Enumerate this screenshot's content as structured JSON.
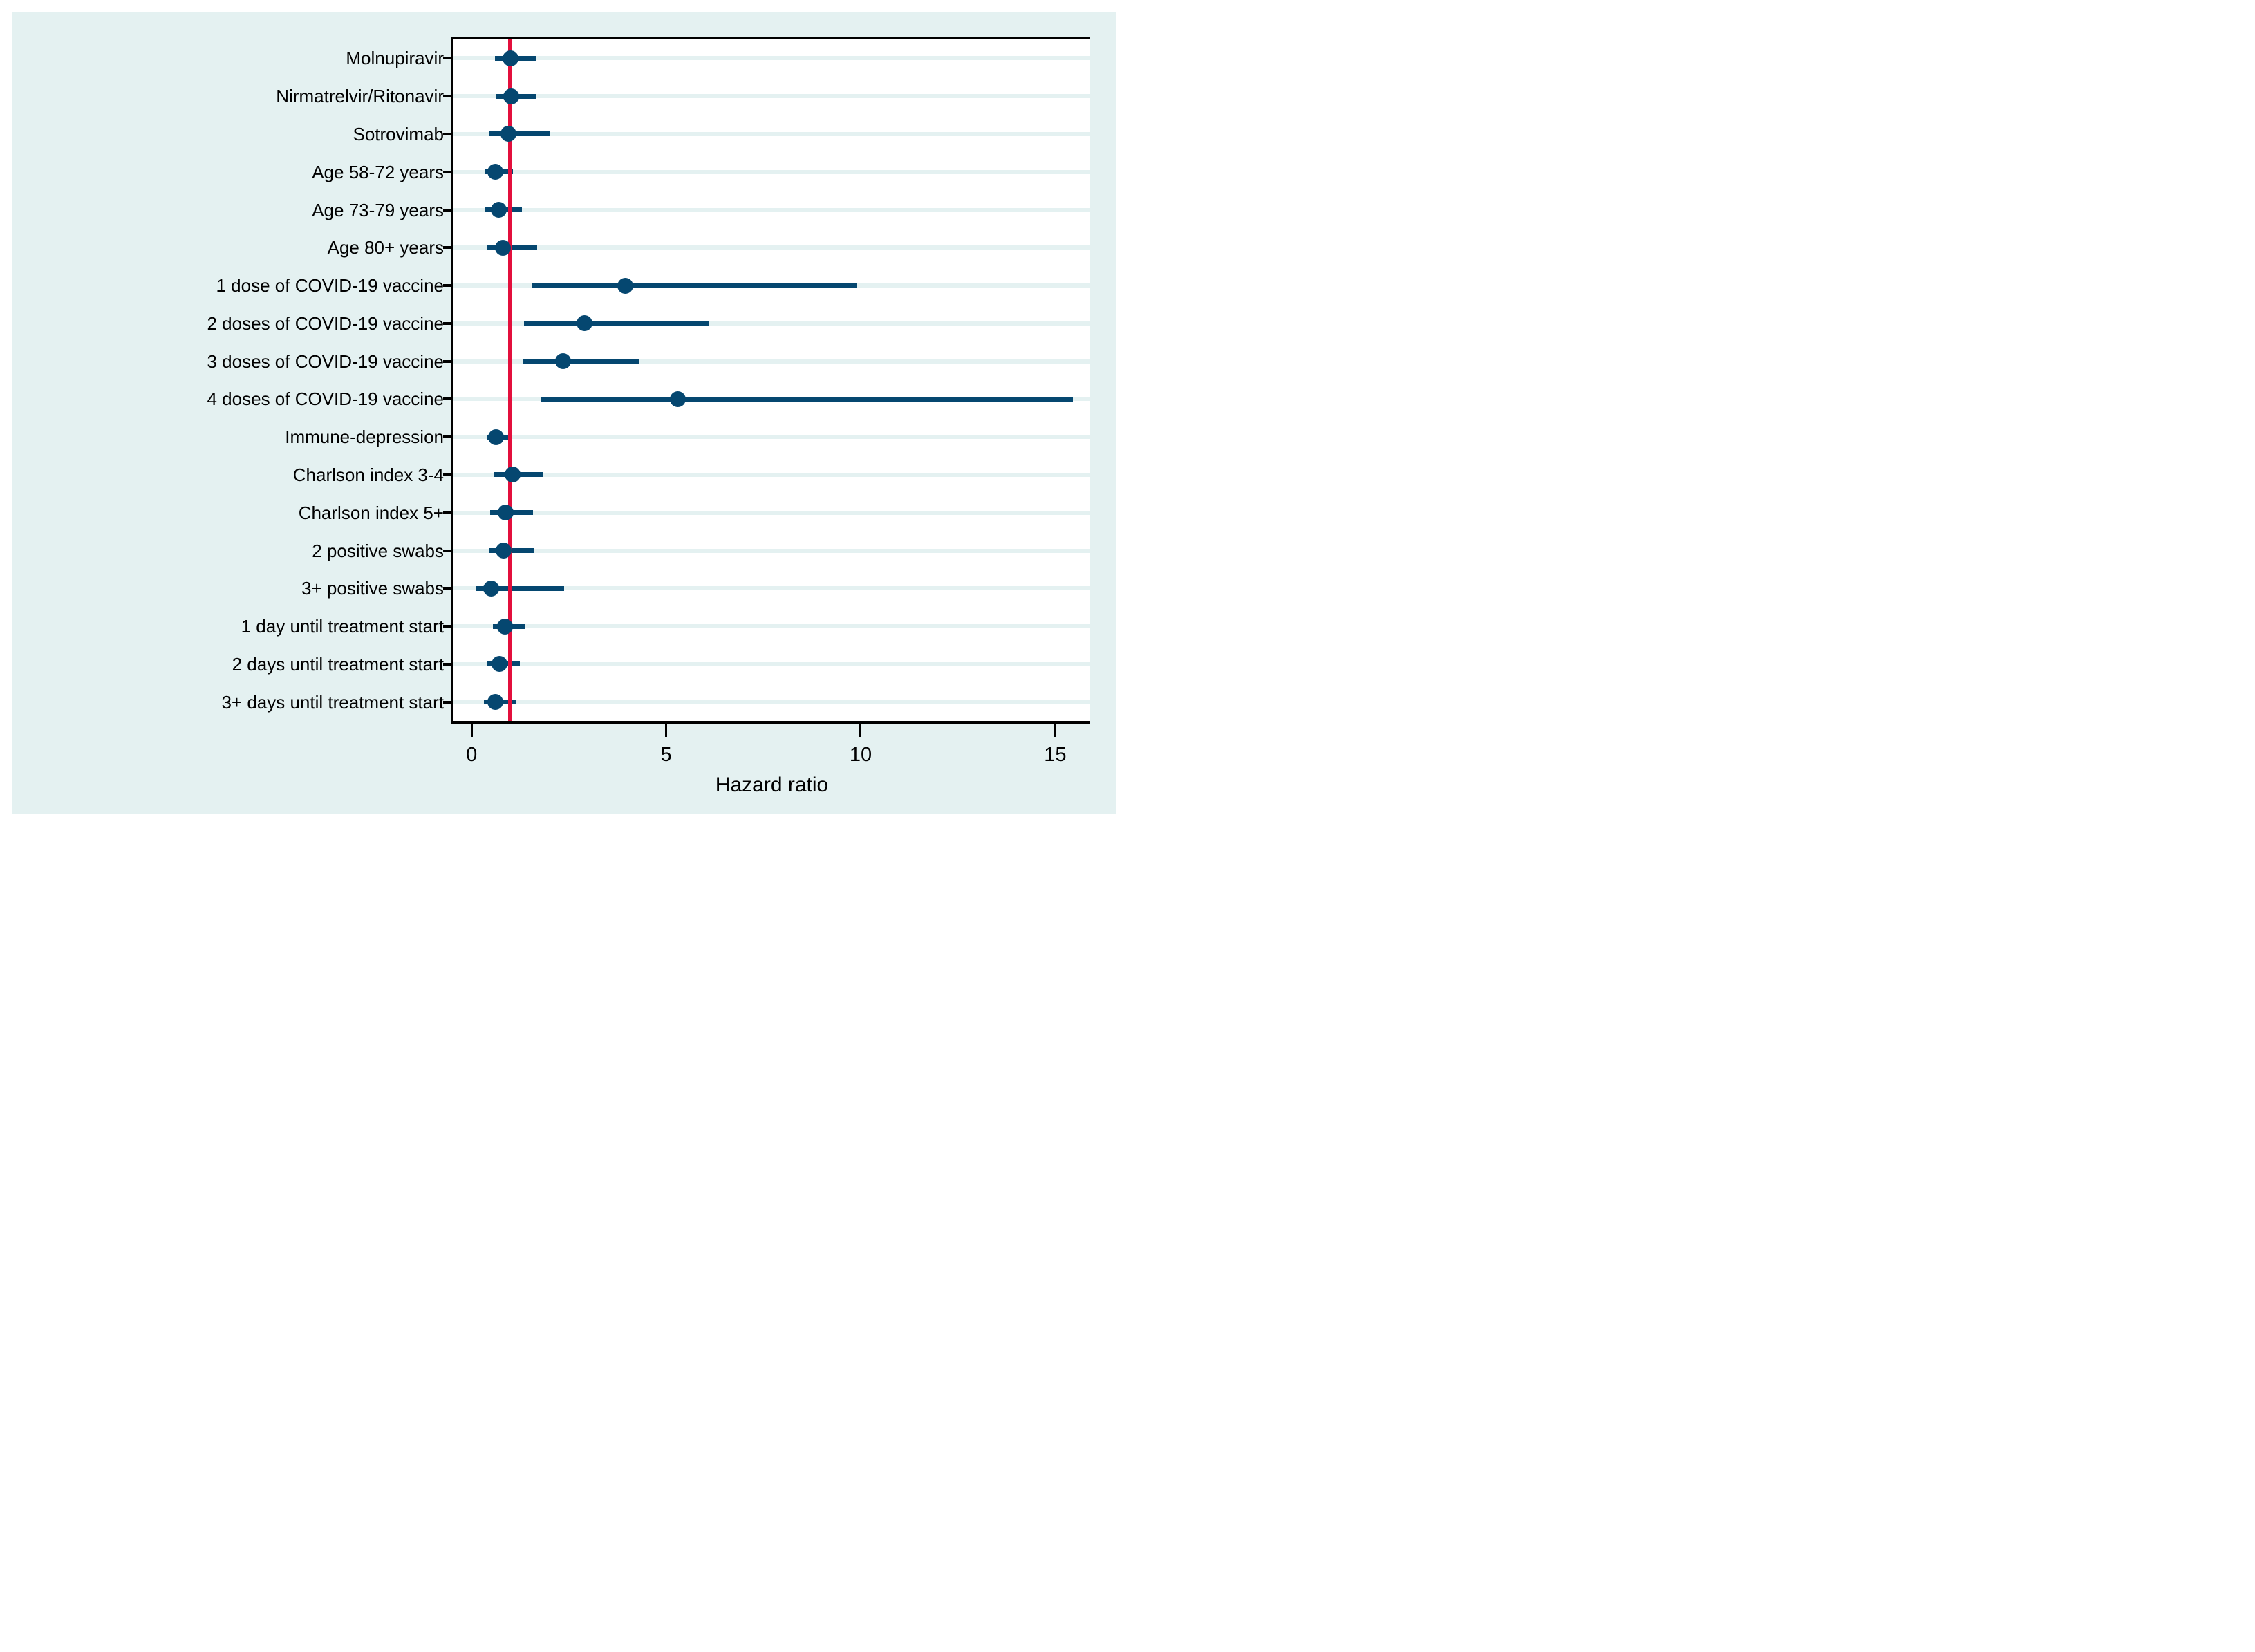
{
  "colors": {
    "page_background": "#ffffff",
    "panel_background": "#e4f1f1",
    "plot_background": "#ffffff",
    "gridline": "#e4f1f1",
    "marker_navy": "#054770",
    "reference_line_red": "#e30f3c",
    "axis_black": "#000000"
  },
  "chart_data": {
    "type": "scatter",
    "variant": "forest-plot",
    "title": "",
    "xlabel": "Hazard ratio",
    "ylabel": "",
    "legend": "none",
    "grid": "horizontal",
    "xlim": [
      -0.465,
      15.9
    ],
    "xticks": [
      "0",
      "5",
      "10",
      "15"
    ],
    "xtick_values": [
      0,
      5,
      10,
      15
    ],
    "reference_line_x": 1,
    "categories": [
      "Molnupiravir",
      "Nirmatrelvir/Ritonavir",
      "Sotrovimab",
      "Age 58-72 years",
      "Age 73-79 years",
      "Age 80+ years",
      "1 dose of COVID-19 vaccine",
      "2 doses of COVID-19 vaccine",
      "3 doses of COVID-19 vaccine",
      "4 doses of COVID-19 vaccine",
      "Immune-depression",
      "Charlson index 3-4",
      "Charlson index 5+",
      "2 positive swabs",
      "3+ positive swabs",
      "1 day until treatment start",
      "2 days until treatment start",
      "3+ days until treatment start"
    ],
    "rows": [
      {
        "label": "Molnupiravir",
        "hr": 1.0,
        "ci_low": 0.6,
        "ci_high": 1.65
      },
      {
        "label": "Nirmatrelvir/Ritonavir",
        "hr": 1.02,
        "ci_low": 0.62,
        "ci_high": 1.67
      },
      {
        "label": "Sotrovimab",
        "hr": 0.94,
        "ci_low": 0.44,
        "ci_high": 2.0
      },
      {
        "label": "Age 58-72 years",
        "hr": 0.61,
        "ci_low": 0.36,
        "ci_high": 1.07
      },
      {
        "label": "Age 73-79 years",
        "hr": 0.69,
        "ci_low": 0.36,
        "ci_high": 1.3
      },
      {
        "label": "Age 80+ years",
        "hr": 0.81,
        "ci_low": 0.39,
        "ci_high": 1.69
      },
      {
        "label": "1 dose of COVID-19 vaccine",
        "hr": 3.95,
        "ci_low": 1.55,
        "ci_high": 9.9
      },
      {
        "label": "2 doses of COVID-19 vaccine",
        "hr": 2.9,
        "ci_low": 1.35,
        "ci_high": 6.1
      },
      {
        "label": "3 doses of COVID-19 vaccine",
        "hr": 2.35,
        "ci_low": 1.32,
        "ci_high": 4.3
      },
      {
        "label": "4 doses of COVID-19 vaccine",
        "hr": 5.3,
        "ci_low": 1.8,
        "ci_high": 15.45
      },
      {
        "label": "Immune-depression",
        "hr": 0.63,
        "ci_low": 0.4,
        "ci_high": 1.01
      },
      {
        "label": "Charlson index 3-4",
        "hr": 1.05,
        "ci_low": 0.59,
        "ci_high": 1.82
      },
      {
        "label": "Charlson index 5+",
        "hr": 0.87,
        "ci_low": 0.48,
        "ci_high": 1.57
      },
      {
        "label": "2 positive swabs",
        "hr": 0.83,
        "ci_low": 0.44,
        "ci_high": 1.59
      },
      {
        "label": "3+ positive swabs",
        "hr": 0.51,
        "ci_low": 0.1,
        "ci_high": 2.38
      },
      {
        "label": "1 day until treatment start",
        "hr": 0.86,
        "ci_low": 0.54,
        "ci_high": 1.38
      },
      {
        "label": "2 days until treatment start",
        "hr": 0.72,
        "ci_low": 0.41,
        "ci_high": 1.24
      },
      {
        "label": "3+ days until treatment start",
        "hr": 0.61,
        "ci_low": 0.32,
        "ci_high": 1.14
      }
    ]
  }
}
